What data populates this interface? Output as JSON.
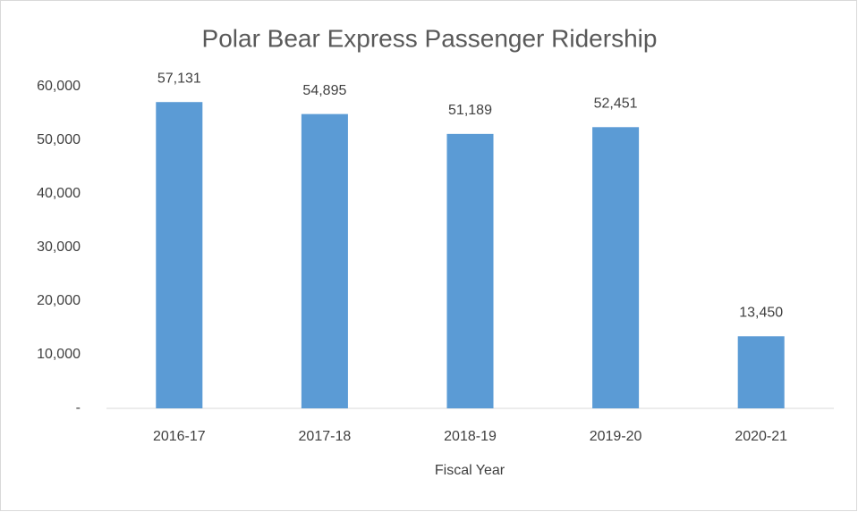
{
  "chart_data": {
    "type": "bar",
    "title": "Polar Bear Express Passenger Ridership",
    "x_label": "Fiscal Year",
    "categories": [
      "2016-17",
      "2017-18",
      "2018-19",
      "2019-20",
      "2020-21"
    ],
    "values": [
      57131,
      54895,
      51189,
      52451,
      13450
    ],
    "value_labels": [
      "57,131",
      "54,895",
      "51,189",
      "52,451",
      "13,450"
    ],
    "color": "#5b9bd5",
    "ylim": [
      0,
      60000
    ],
    "yticks": [
      {
        "value": 0,
        "label": "-"
      },
      {
        "value": 10000,
        "label": "10,000"
      },
      {
        "value": 20000,
        "label": "20,000"
      },
      {
        "value": 30000,
        "label": "30,000"
      },
      {
        "value": 40000,
        "label": "40,000"
      },
      {
        "value": 50000,
        "label": "50,000"
      },
      {
        "value": 60000,
        "label": "60,000"
      }
    ],
    "grid": false
  }
}
